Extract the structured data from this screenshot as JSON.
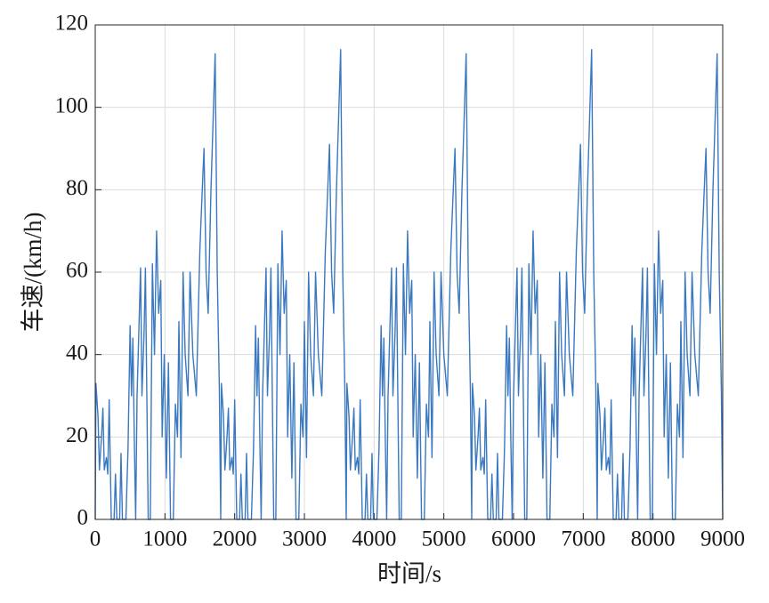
{
  "chart_data": {
    "type": "line",
    "xlabel": "时间/s",
    "ylabel": "车速/(km/h)",
    "color": "#3a78c0",
    "grid": true,
    "xlim": [
      0,
      9000
    ],
    "xticks": [
      0,
      1000,
      2000,
      3000,
      4000,
      5000,
      6000,
      7000,
      8000,
      9000
    ],
    "ylim": [
      0,
      120
    ],
    "yticks": [
      0,
      20,
      40,
      60,
      80,
      100,
      120
    ],
    "x": [
      0,
      10,
      40,
      60,
      90,
      110,
      130,
      160,
      180,
      200,
      230,
      270,
      290,
      310,
      350,
      370,
      390,
      440,
      470,
      500,
      520,
      540,
      560,
      580,
      600,
      650,
      670,
      700,
      720,
      740,
      760,
      790,
      820,
      850,
      880,
      910,
      940,
      960,
      990,
      1020,
      1050,
      1080,
      1120,
      1150,
      1180,
      1200,
      1230,
      1260,
      1290,
      1330,
      1360,
      1400,
      1450,
      1500,
      1530,
      1560,
      1590,
      1620,
      1660,
      1720,
      1750,
      1780,
      1800,
      1810,
      1840,
      1860,
      1890,
      1910,
      1930,
      1960,
      1980,
      2000,
      2030,
      2070,
      2090,
      2110,
      2150,
      2170,
      2190,
      2240,
      2270,
      2300,
      2320,
      2340,
      2360,
      2380,
      2400,
      2450,
      2470,
      2500,
      2520,
      2540,
      2560,
      2590,
      2620,
      2650,
      2680,
      2710,
      2740,
      2760,
      2790,
      2820,
      2850,
      2880,
      2920,
      2950,
      2980,
      3000,
      3030,
      3060,
      3090,
      3130,
      3160,
      3200,
      3250,
      3300,
      3330,
      3360,
      3390,
      3420,
      3460,
      3520,
      3550,
      3580,
      3600,
      3610,
      3640,
      3660,
      3690,
      3710,
      3730,
      3760,
      3780,
      3800,
      3830,
      3870,
      3890,
      3910,
      3950,
      3970,
      3990,
      4040,
      4070,
      4100,
      4120,
      4140,
      4160,
      4180,
      4200,
      4250,
      4270,
      4300,
      4320,
      4340,
      4360,
      4390,
      4420,
      4450,
      4480,
      4510,
      4540,
      4560,
      4590,
      4620,
      4650,
      4680,
      4720,
      4750,
      4780,
      4800,
      4830,
      4860,
      4890,
      4930,
      4960,
      5000,
      5050,
      5100,
      5130,
      5160,
      5190,
      5220,
      5260,
      5320,
      5350,
      5380,
      5400,
      5410,
      5440,
      5460,
      5490,
      5510,
      5530,
      5560,
      5580,
      5600,
      5630,
      5670,
      5690,
      5710,
      5750,
      5770,
      5790,
      5840,
      5870,
      5900,
      5920,
      5940,
      5960,
      5980,
      6000,
      6050,
      6070,
      6100,
      6120,
      6140,
      6160,
      6190,
      6220,
      6250,
      6280,
      6310,
      6340,
      6360,
      6390,
      6420,
      6450,
      6480,
      6520,
      6550,
      6580,
      6600,
      6630,
      6660,
      6690,
      6730,
      6760,
      6800,
      6850,
      6900,
      6930,
      6960,
      6990,
      7020,
      7060,
      7120,
      7150,
      7180,
      7200,
      7210,
      7240,
      7260,
      7290,
      7310,
      7330,
      7360,
      7380,
      7400,
      7430,
      7470,
      7490,
      7510,
      7550,
      7570,
      7590,
      7640,
      7670,
      7700,
      7720,
      7740,
      7760,
      7780,
      7800,
      7850,
      7870,
      7900,
      7920,
      7940,
      7960,
      7990,
      8020,
      8050,
      8080,
      8110,
      8140,
      8160,
      8190,
      8220,
      8250,
      8280,
      8320,
      8350,
      8380,
      8400,
      8430,
      8460,
      8490,
      8530,
      8560,
      8600,
      8650,
      8700,
      8730,
      8760,
      8790,
      8820,
      8860,
      8920,
      8950,
      8980,
      9000
    ],
    "values": [
      0,
      33,
      25,
      12,
      20,
      27,
      12,
      15,
      11,
      29,
      0,
      0,
      11,
      0,
      0,
      16,
      0,
      0,
      17,
      47,
      30,
      44,
      20,
      0,
      30,
      61,
      30,
      45,
      61,
      30,
      0,
      0,
      62,
      40,
      70,
      50,
      58,
      20,
      40,
      10,
      38,
      0,
      0,
      28,
      20,
      48,
      15,
      60,
      40,
      30,
      60,
      40,
      30,
      65,
      78,
      90,
      60,
      50,
      80,
      113,
      60,
      32,
      0,
      33,
      25,
      12,
      20,
      27,
      12,
      15,
      11,
      29,
      0,
      0,
      11,
      0,
      0,
      16,
      0,
      0,
      17,
      47,
      30,
      44,
      20,
      0,
      30,
      61,
      30,
      45,
      61,
      30,
      0,
      0,
      62,
      40,
      70,
      50,
      58,
      20,
      40,
      10,
      38,
      0,
      0,
      28,
      20,
      48,
      15,
      60,
      40,
      30,
      60,
      40,
      30,
      65,
      78,
      91,
      60,
      50,
      80,
      114,
      60,
      32,
      0,
      33,
      25,
      12,
      20,
      27,
      12,
      15,
      11,
      29,
      0,
      0,
      11,
      0,
      0,
      16,
      0,
      0,
      17,
      47,
      30,
      44,
      20,
      0,
      30,
      61,
      30,
      45,
      61,
      30,
      0,
      0,
      62,
      40,
      70,
      50,
      58,
      20,
      40,
      10,
      38,
      0,
      0,
      28,
      20,
      48,
      15,
      60,
      40,
      30,
      60,
      40,
      30,
      65,
      78,
      90,
      60,
      50,
      80,
      113,
      60,
      32,
      0,
      33,
      25,
      12,
      20,
      27,
      12,
      15,
      11,
      29,
      0,
      0,
      11,
      0,
      0,
      16,
      0,
      0,
      17,
      47,
      30,
      44,
      20,
      0,
      30,
      61,
      30,
      45,
      61,
      30,
      0,
      0,
      62,
      40,
      70,
      50,
      58,
      20,
      40,
      10,
      38,
      0,
      0,
      28,
      20,
      48,
      15,
      60,
      40,
      30,
      60,
      40,
      30,
      65,
      78,
      91,
      60,
      50,
      80,
      114,
      60,
      32,
      0,
      33,
      25,
      12,
      20,
      27,
      12,
      15,
      11,
      29,
      0,
      0,
      11,
      0,
      0,
      16,
      0,
      0,
      17,
      47,
      30,
      44,
      20,
      0,
      30,
      61,
      30,
      45,
      61,
      30,
      0,
      0,
      62,
      40,
      70,
      50,
      58,
      20,
      40,
      10,
      38,
      0,
      0,
      28,
      20,
      48,
      15,
      60,
      40,
      30,
      60,
      40,
      30,
      65,
      78,
      90,
      60,
      50,
      80,
      113,
      60,
      32,
      0
    ]
  }
}
